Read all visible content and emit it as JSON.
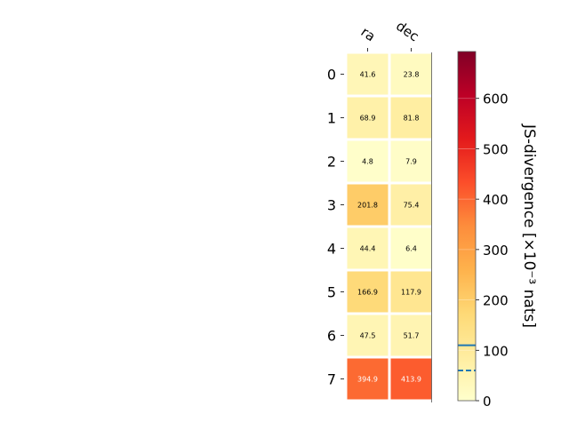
{
  "chart_data": {
    "type": "heatmap",
    "columns": [
      "ra",
      "dec"
    ],
    "rows": [
      "0",
      "1",
      "2",
      "3",
      "4",
      "5",
      "6",
      "7"
    ],
    "values": [
      [
        41.6,
        23.8
      ],
      [
        68.9,
        81.8
      ],
      [
        4.8,
        7.9
      ],
      [
        201.8,
        75.4
      ],
      [
        44.4,
        6.4
      ],
      [
        166.9,
        117.9
      ],
      [
        47.5,
        51.7
      ],
      [
        394.9,
        413.9
      ]
    ],
    "cell_labels": [
      [
        "41.6",
        "23.8"
      ],
      [
        "68.9",
        "81.8"
      ],
      [
        "4.8",
        "7.9"
      ],
      [
        "201.8",
        "75.4"
      ],
      [
        "44.4",
        "6.4"
      ],
      [
        "166.9",
        "117.9"
      ],
      [
        "47.5",
        "51.7"
      ],
      [
        "394.9",
        "413.9"
      ]
    ],
    "colorbar": {
      "label": "JS-divergence [×10⁻³ nats]",
      "range": [
        0,
        693
      ],
      "ticks": [
        "0",
        "100",
        "200",
        "300",
        "400",
        "500",
        "600"
      ],
      "tick_values": [
        0,
        100,
        200,
        300,
        400,
        500,
        600
      ],
      "colormap": "YlOrRd",
      "solid_marker_value": 110,
      "dashed_marker_value": 60,
      "marker_color": "#1f77b4"
    }
  }
}
